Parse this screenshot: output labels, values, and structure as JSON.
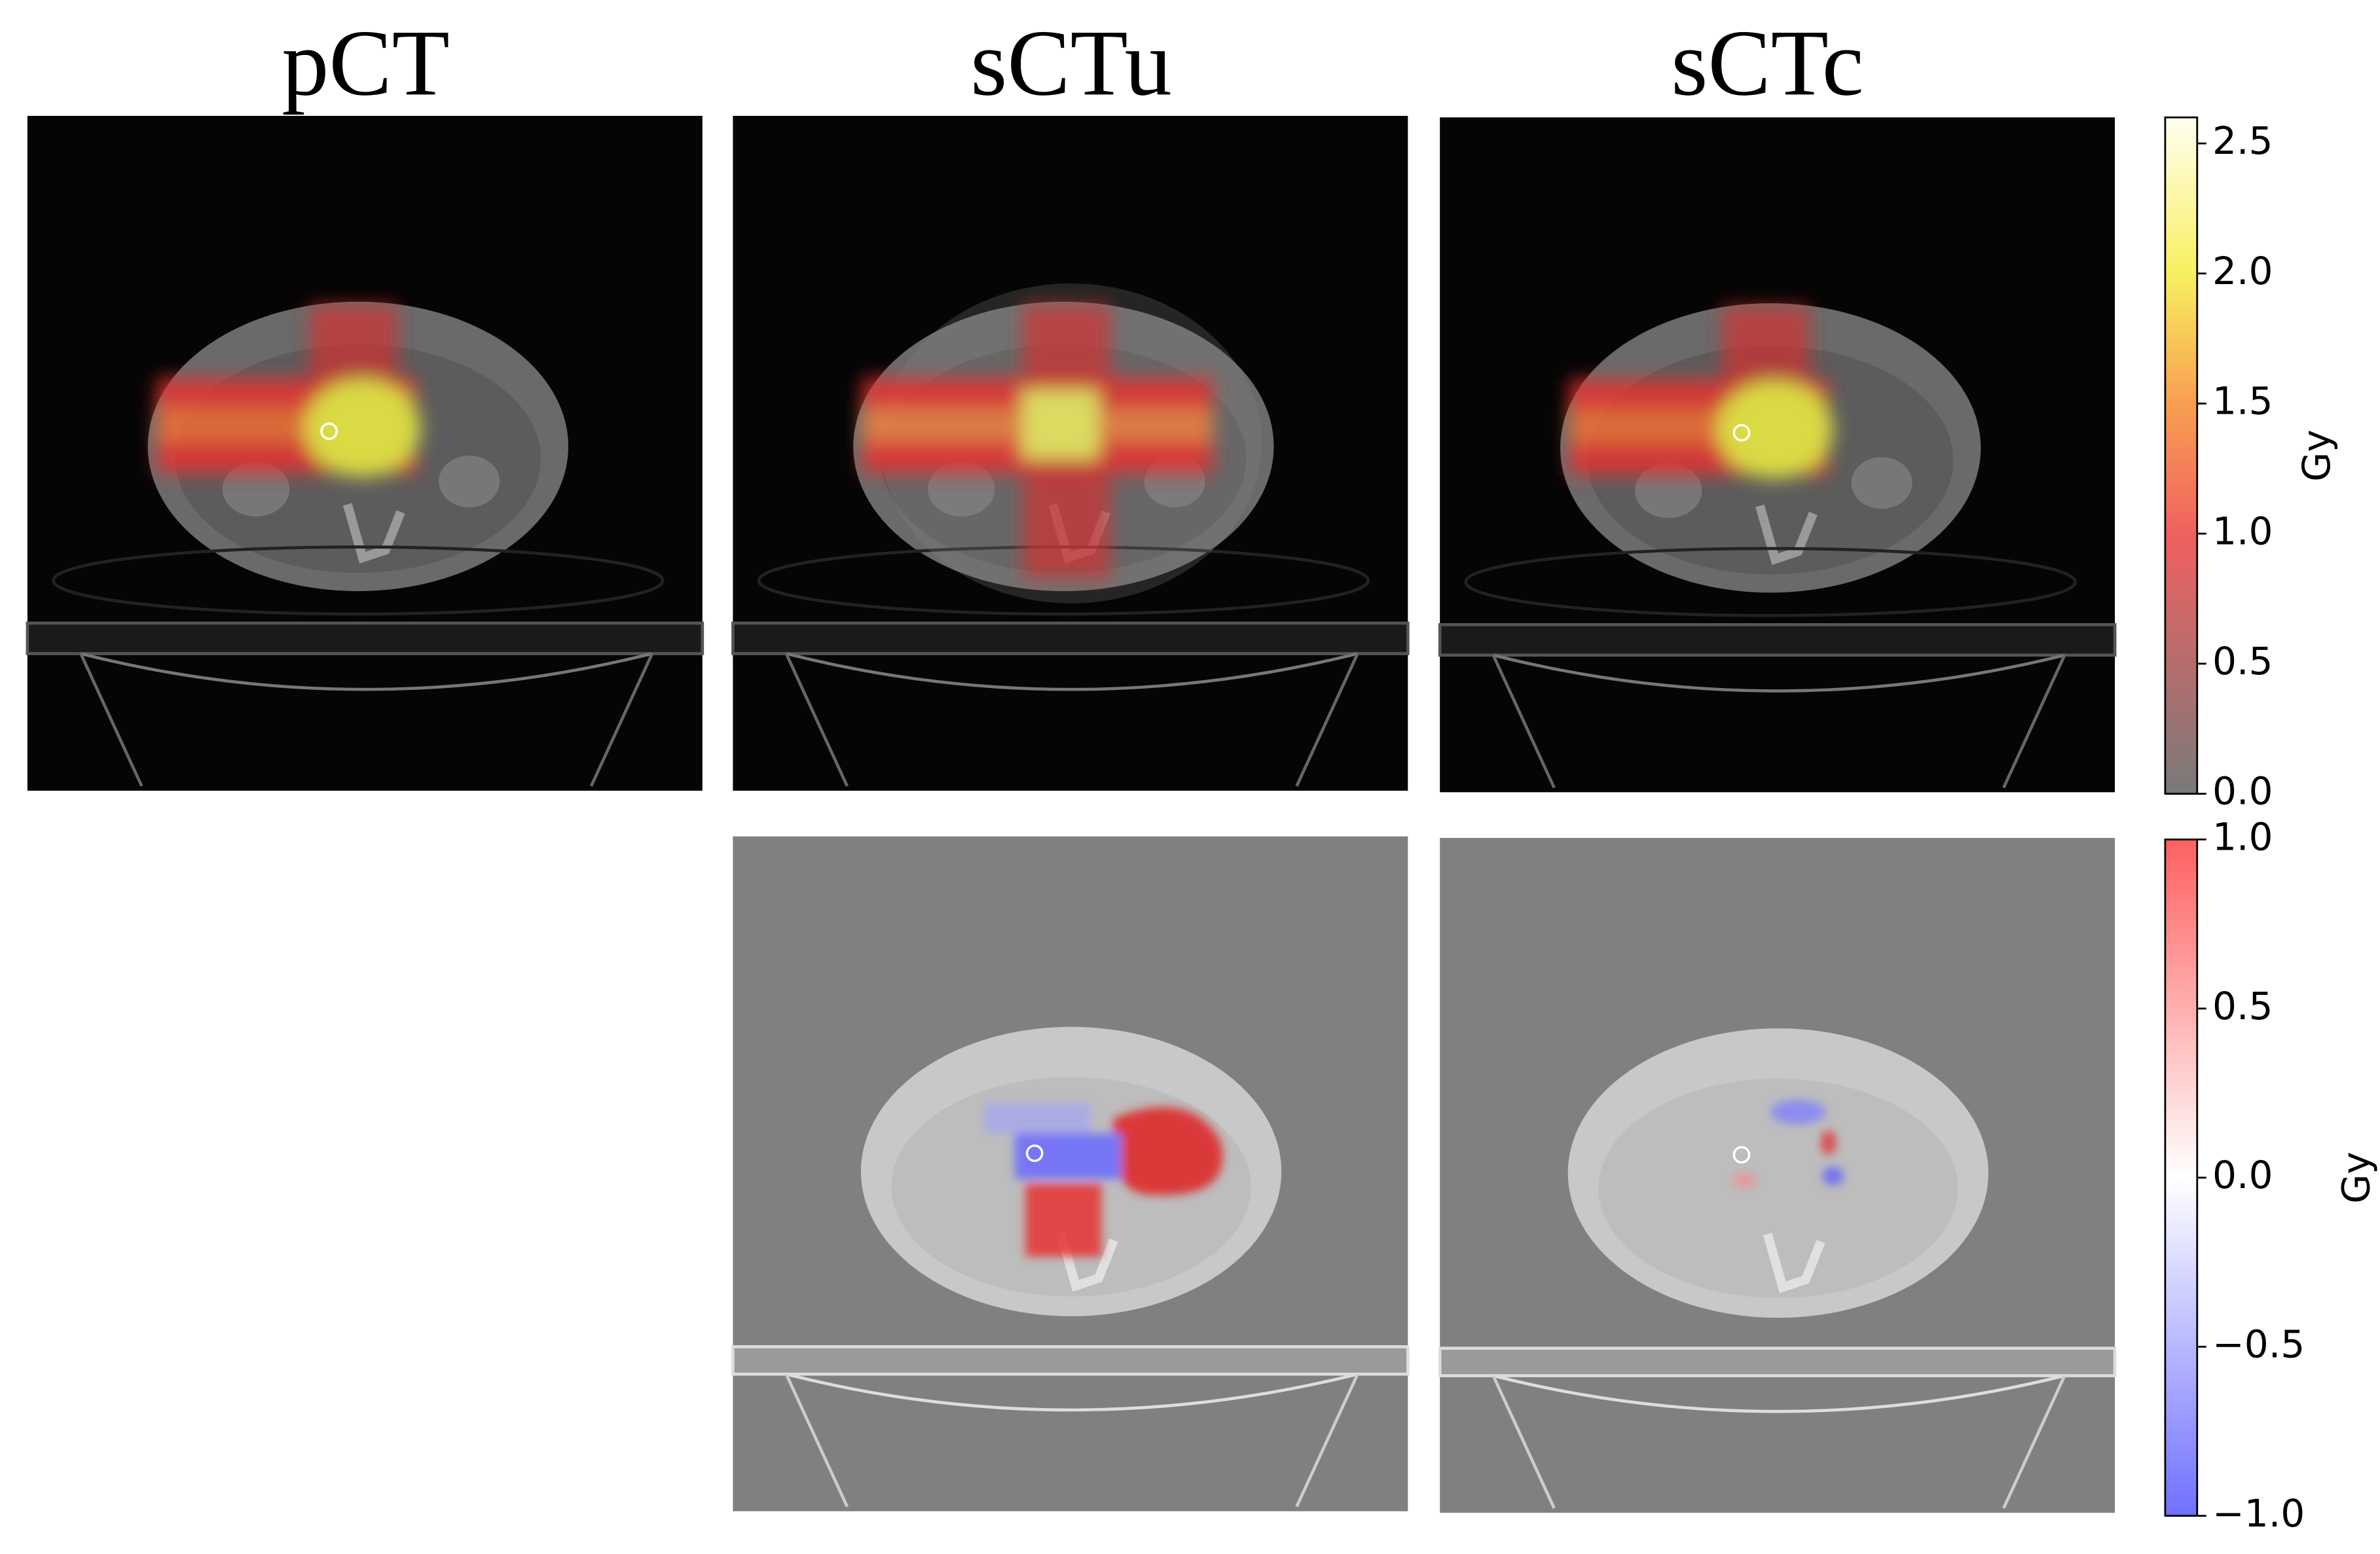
{
  "panels": {
    "titles": [
      "pCT",
      "sCTu",
      "sCTc"
    ]
  },
  "colorbars": [
    {
      "label": "Gy",
      "lim": [
        0,
        2.6
      ],
      "ticks": [
        {
          "value": 0,
          "label": "0.0"
        },
        {
          "value": 0.5,
          "label": "0.5"
        },
        {
          "value": 1,
          "label": "1.0"
        },
        {
          "value": 1.5,
          "label": "1.5"
        },
        {
          "value": 2,
          "label": "2.0"
        },
        {
          "value": 2.5,
          "label": "2.5"
        }
      ]
    },
    {
      "label": "Gy",
      "lim": [
        -1,
        1
      ],
      "ticks": [
        {
          "value": -1,
          "label": "−1.0"
        },
        {
          "value": -0.5,
          "label": "−0.5"
        },
        {
          "value": 0,
          "label": "0.0"
        },
        {
          "value": 0.5,
          "label": "0.5"
        },
        {
          "value": 1,
          "label": "1.0"
        }
      ]
    }
  ]
}
